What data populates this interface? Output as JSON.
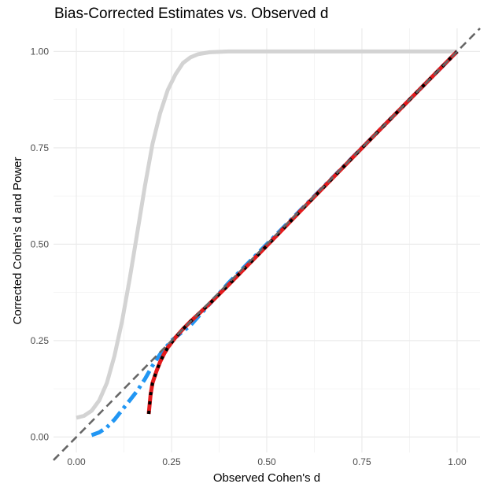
{
  "chart_data": {
    "type": "line",
    "title": "Bias-Corrected Estimates vs. Observed d",
    "xlabel": "Observed Cohen's d",
    "ylabel": "Corrected Cohen's d and Power",
    "xlim": [
      -0.06,
      1.06
    ],
    "ylim": [
      -0.04,
      1.06
    ],
    "x_ticks": [
      0.0,
      0.25,
      0.5,
      0.75,
      1.0
    ],
    "x_tick_labels": [
      "0.00",
      "0.25",
      "0.50",
      "0.75",
      "1.00"
    ],
    "y_ticks": [
      0.0,
      0.25,
      0.5,
      0.75,
      1.0
    ],
    "y_tick_labels": [
      "0.00",
      "0.25",
      "0.50",
      "0.75",
      "1.00"
    ],
    "grid": true,
    "legend": "none",
    "series": [
      {
        "color": "#d3d3d3",
        "style": "solid",
        "x": [
          0.0,
          0.02,
          0.04,
          0.06,
          0.08,
          0.1,
          0.12,
          0.14,
          0.16,
          0.18,
          0.2,
          0.22,
          0.24,
          0.26,
          0.28,
          0.3,
          0.32,
          0.35,
          0.4,
          0.5,
          1.0
        ],
        "y": [
          0.05,
          0.055,
          0.068,
          0.095,
          0.14,
          0.21,
          0.3,
          0.41,
          0.53,
          0.65,
          0.76,
          0.84,
          0.9,
          0.94,
          0.97,
          0.985,
          0.993,
          0.998,
          1.0,
          1.0,
          1.0
        ]
      },
      {
        "color": "#2196f3",
        "style": "dashdot",
        "x": [
          0.04,
          0.06,
          0.08,
          0.1,
          0.12,
          0.14,
          0.16,
          0.18,
          0.2,
          0.22,
          0.25,
          0.3,
          0.4,
          0.5,
          0.6,
          0.7,
          0.8,
          0.9,
          1.0
        ],
        "y": [
          0.005,
          0.012,
          0.025,
          0.045,
          0.07,
          0.095,
          0.12,
          0.15,
          0.185,
          0.215,
          0.25,
          0.29,
          0.4,
          0.5,
          0.6,
          0.7,
          0.8,
          0.9,
          1.0
        ]
      },
      {
        "color": "#e31a1c",
        "style": "solid",
        "x": [
          0.19,
          0.195,
          0.2,
          0.21,
          0.22,
          0.23,
          0.24,
          0.25,
          0.26,
          0.28,
          0.3,
          0.35,
          0.4,
          0.5,
          0.6,
          0.7,
          0.8,
          0.9,
          1.0
        ],
        "y": [
          0.06,
          0.11,
          0.14,
          0.17,
          0.195,
          0.215,
          0.232,
          0.245,
          0.258,
          0.28,
          0.3,
          0.346,
          0.395,
          0.496,
          0.598,
          0.699,
          0.8,
          0.9,
          1.0
        ]
      },
      {
        "color": "#000000",
        "style": "dotted",
        "x": [
          0.19,
          0.195,
          0.2,
          0.21,
          0.22,
          0.23,
          0.24,
          0.25,
          0.26,
          0.28,
          0.3,
          0.35,
          0.4,
          0.5,
          0.6,
          0.7,
          0.8,
          0.9,
          1.0
        ],
        "y": [
          0.06,
          0.11,
          0.14,
          0.17,
          0.195,
          0.215,
          0.232,
          0.245,
          0.258,
          0.28,
          0.3,
          0.346,
          0.395,
          0.496,
          0.598,
          0.699,
          0.8,
          0.9,
          1.0
        ]
      }
    ],
    "reference_line": {
      "color": "#666666",
      "style": "dashed",
      "slope": 1,
      "intercept": 0
    }
  }
}
